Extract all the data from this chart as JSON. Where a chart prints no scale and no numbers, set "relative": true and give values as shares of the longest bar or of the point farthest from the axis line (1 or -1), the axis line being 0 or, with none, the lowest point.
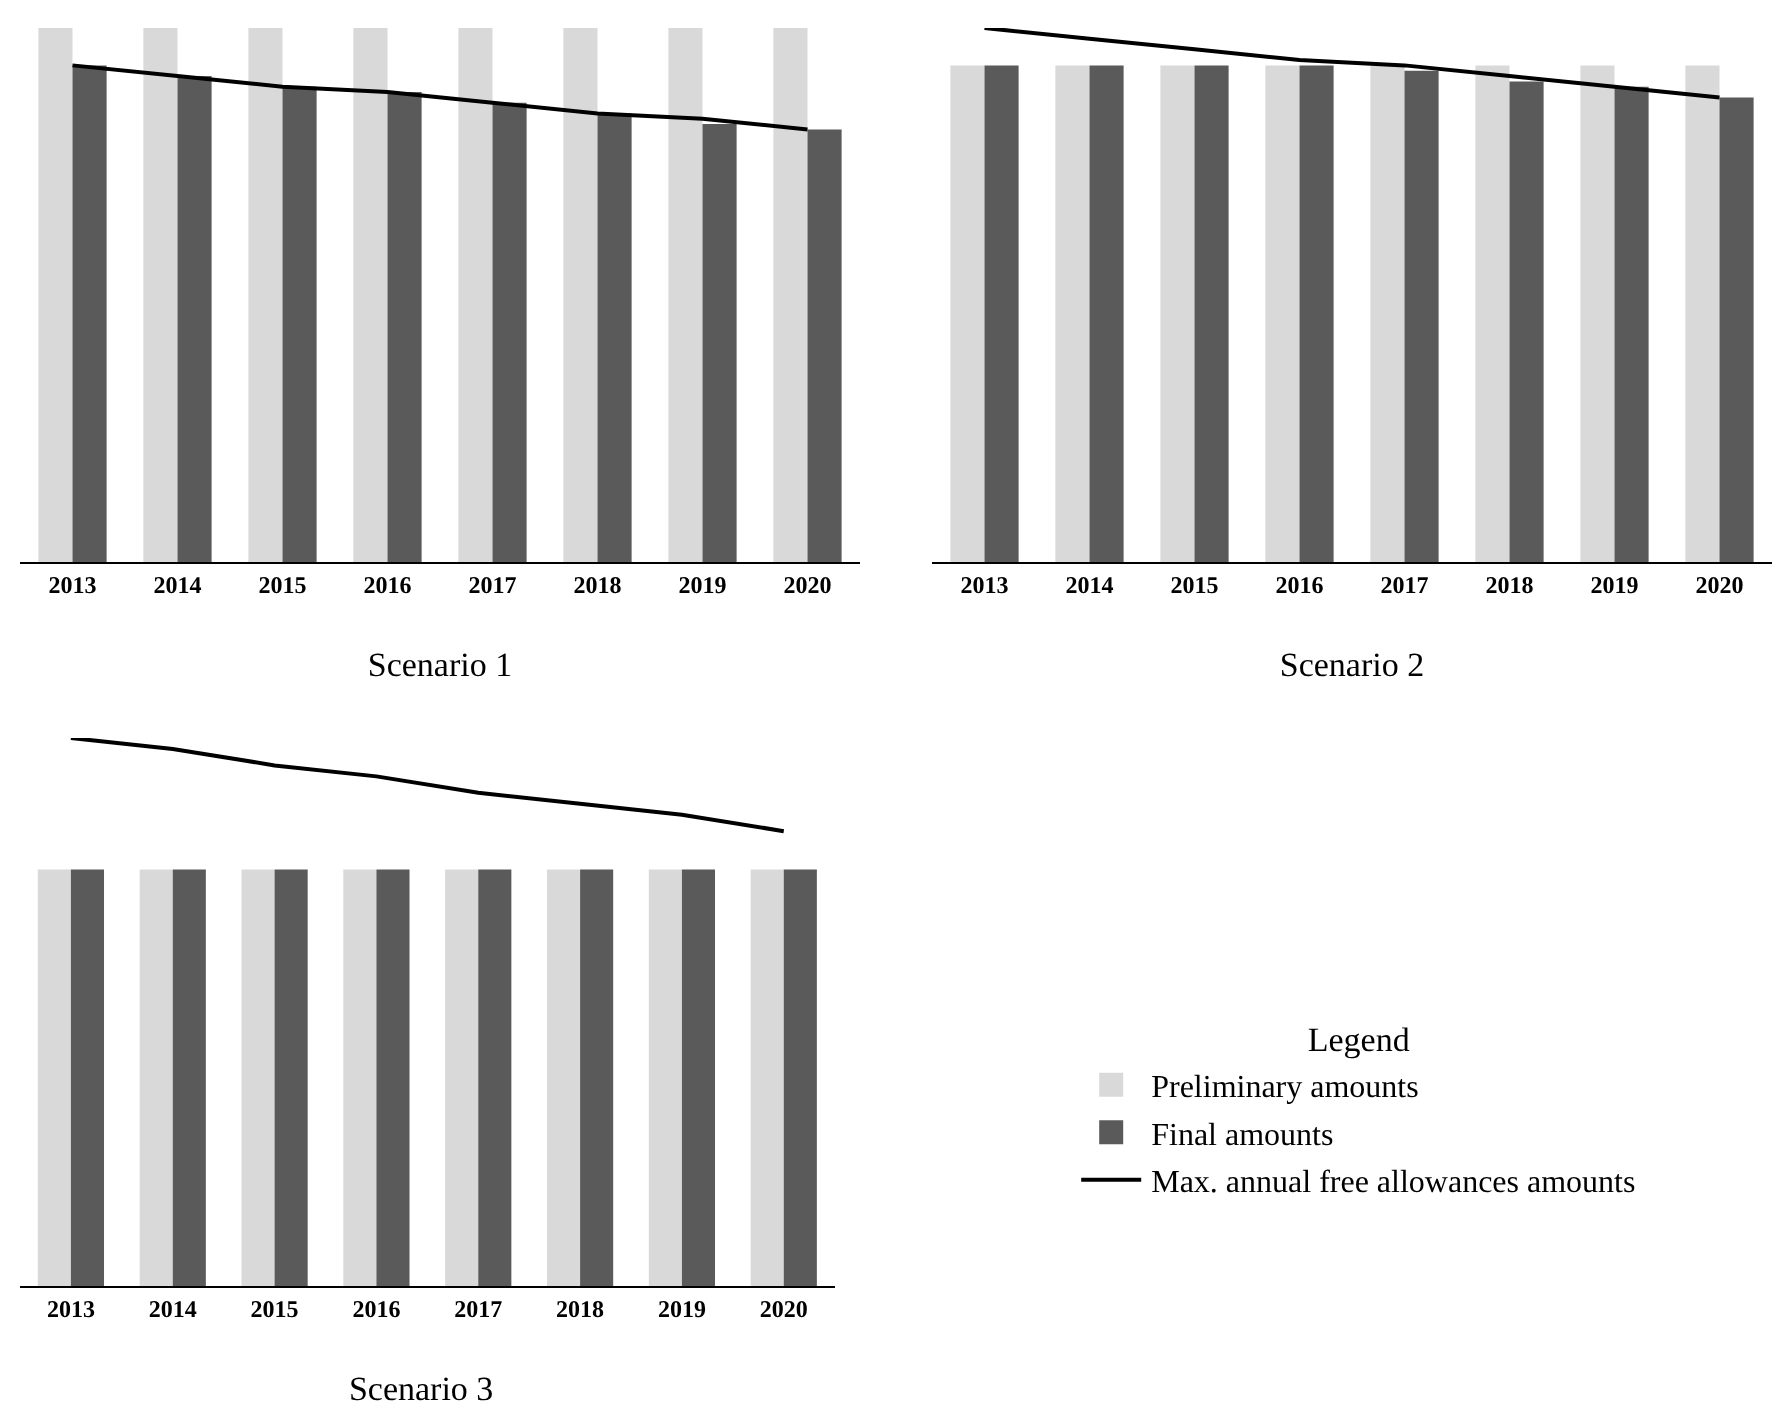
{
  "chart_data": [
    {
      "type": "bar",
      "title": "Scenario 1",
      "relative": true,
      "tick_labels": "x",
      "grid": false,
      "legend": false,
      "categories": [
        "2013",
        "2014",
        "2015",
        "2016",
        "2017",
        "2018",
        "2019",
        "2020"
      ],
      "series": [
        {
          "color": "#d9d9d9",
          "values": [
            1,
            1,
            1,
            1,
            1,
            1,
            1,
            1
          ]
        },
        {
          "color": "#5a5a5a",
          "values": [
            0.93,
            0.91,
            0.89,
            0.88,
            0.86,
            0.84,
            0.82,
            0.81
          ]
        },
        {
          "type": "line",
          "color": "#000000",
          "marker": "none",
          "line_style": "solid",
          "values": [
            0.93,
            0.91,
            0.89,
            0.88,
            0.86,
            0.84,
            0.83,
            0.81
          ]
        }
      ]
    },
    {
      "type": "bar",
      "title": "Scenario 2",
      "relative": true,
      "tick_labels": "x",
      "grid": false,
      "legend": false,
      "categories": [
        "2013",
        "2014",
        "2015",
        "2016",
        "2017",
        "2018",
        "2019",
        "2020"
      ],
      "series": [
        {
          "color": "#d9d9d9",
          "values": [
            0.93,
            0.93,
            0.93,
            0.93,
            0.93,
            0.93,
            0.93,
            0.93
          ]
        },
        {
          "color": "#5a5a5a",
          "values": [
            0.93,
            0.93,
            0.93,
            0.93,
            0.92,
            0.9,
            0.89,
            0.87
          ]
        },
        {
          "type": "line",
          "color": "#000000",
          "marker": "none",
          "line_style": "solid",
          "values": [
            1,
            0.98,
            0.96,
            0.94,
            0.93,
            0.91,
            0.89,
            0.87
          ]
        }
      ]
    },
    {
      "type": "bar",
      "title": "Scenario 3",
      "relative": true,
      "tick_labels": "x",
      "grid": false,
      "legend": "right",
      "legend_title": "Legend",
      "categories": [
        "2013",
        "2014",
        "2015",
        "2016",
        "2017",
        "2018",
        "2019",
        "2020"
      ],
      "series": [
        {
          "name": "Preliminary amounts",
          "color": "#d9d9d9",
          "values": [
            0.76,
            0.76,
            0.76,
            0.76,
            0.76,
            0.76,
            0.76,
            0.76
          ]
        },
        {
          "name": "Final amounts",
          "color": "#5a5a5a",
          "values": [
            0.76,
            0.76,
            0.76,
            0.76,
            0.76,
            0.76,
            0.76,
            0.76
          ]
        },
        {
          "name": "Max. annual free allowances amounts",
          "type": "line",
          "color": "#000000",
          "marker": "none",
          "line_style": "solid",
          "values": [
            1,
            0.98,
            0.95,
            0.93,
            0.9,
            0.88,
            0.86,
            0.83
          ]
        }
      ]
    }
  ]
}
